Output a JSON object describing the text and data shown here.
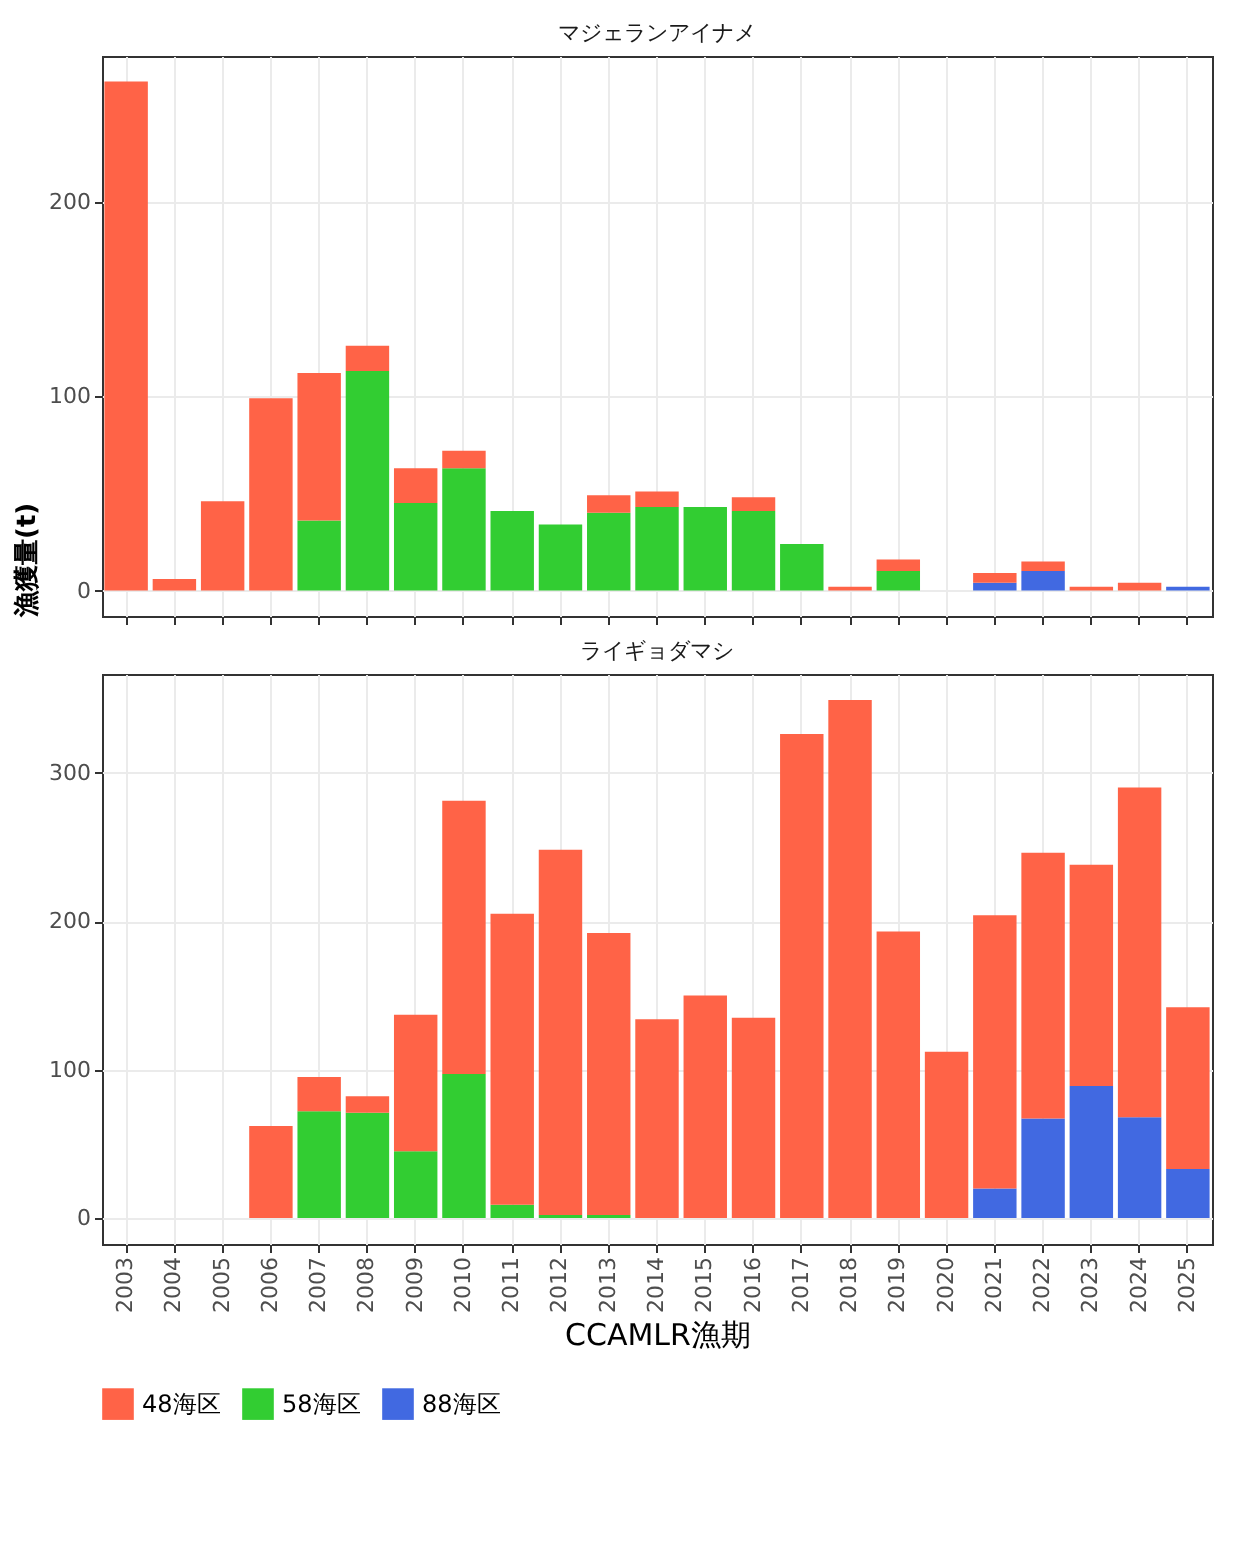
{
  "chart_data": [
    {
      "type": "bar",
      "title": "マジェランアイナメ",
      "ylabel": "漁獲量(t)",
      "stacked": true,
      "categories": [
        "2003",
        "2004",
        "2005",
        "2006",
        "2007",
        "2008",
        "2009",
        "2010",
        "2011",
        "2012",
        "2013",
        "2014",
        "2015",
        "2016",
        "2017",
        "2018",
        "2019",
        "2020",
        "2021",
        "2022",
        "2023",
        "2024",
        "2025"
      ],
      "series": [
        {
          "name": "88海区",
          "color": "#4169e1",
          "values": [
            null,
            null,
            null,
            null,
            null,
            null,
            null,
            null,
            null,
            null,
            null,
            null,
            null,
            null,
            null,
            null,
            null,
            null,
            4,
            10,
            null,
            null,
            2
          ]
        },
        {
          "name": "58海区",
          "color": "#32cd32",
          "values": [
            null,
            null,
            null,
            null,
            36,
            113,
            45,
            63,
            41,
            34,
            40,
            43,
            43,
            41,
            24,
            null,
            10,
            null,
            null,
            null,
            null,
            null,
            null
          ]
        },
        {
          "name": "48海区",
          "color": "#ff6347",
          "values": [
            262,
            6,
            46,
            99,
            76,
            13,
            18,
            9,
            null,
            null,
            9,
            8,
            null,
            7,
            null,
            2,
            6,
            null,
            5,
            5,
            2,
            4,
            null
          ]
        }
      ],
      "ylim": [
        -13.1,
        275.1
      ],
      "yticks": [
        0,
        100,
        200
      ],
      "grid": true,
      "tick_labels": "y",
      "legend": "bottom"
    },
    {
      "type": "bar",
      "title": "ライギョダマシ",
      "xlabel": "CCAMLR漁期",
      "stacked": true,
      "categories": [
        "2003",
        "2004",
        "2005",
        "2006",
        "2007",
        "2008",
        "2009",
        "2010",
        "2011",
        "2012",
        "2013",
        "2014",
        "2015",
        "2016",
        "2017",
        "2018",
        "2019",
        "2020",
        "2021",
        "2022",
        "2023",
        "2024",
        "2025"
      ],
      "series": [
        {
          "name": "88海区",
          "color": "#4169e1",
          "values": [
            null,
            null,
            null,
            null,
            null,
            null,
            null,
            null,
            null,
            null,
            null,
            null,
            null,
            null,
            null,
            null,
            null,
            null,
            20,
            67,
            89,
            68,
            33
          ]
        },
        {
          "name": "58海区",
          "color": "#32cd32",
          "values": [
            null,
            null,
            null,
            null,
            72,
            71,
            45,
            97,
            9,
            2,
            2,
            null,
            null,
            null,
            null,
            null,
            null,
            null,
            null,
            null,
            null,
            null,
            null
          ]
        },
        {
          "name": "48海区",
          "color": "#ff6347",
          "values": [
            null,
            null,
            null,
            62,
            23,
            11,
            92,
            184,
            196,
            246,
            190,
            134,
            150,
            135,
            326,
            349,
            193,
            112,
            184,
            179,
            149,
            222,
            109
          ]
        }
      ],
      "ylim": [
        -17.45,
        366.45
      ],
      "yticks": [
        0,
        100,
        200,
        300
      ],
      "grid": true,
      "legend": "bottom"
    }
  ]
}
